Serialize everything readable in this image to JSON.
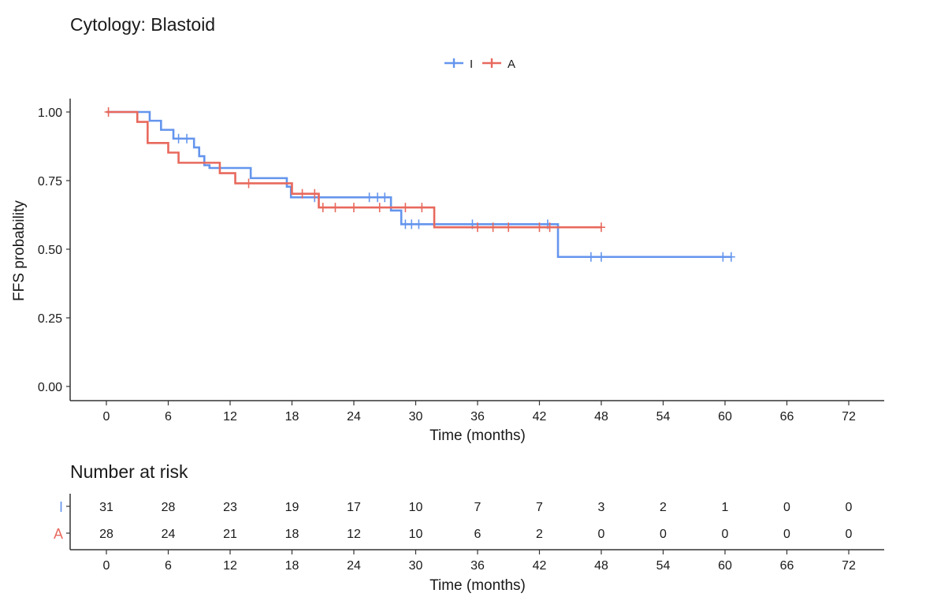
{
  "chart_data": [
    {
      "type": "line",
      "subtype": "kaplan-meier",
      "title": "Cytology: Blastoid",
      "xlabel": "Time (months)",
      "ylabel": "FFS probability",
      "xlim": [
        0,
        72
      ],
      "ylim": [
        0,
        1
      ],
      "x_ticks": [
        0,
        6,
        12,
        18,
        24,
        30,
        36,
        42,
        48,
        54,
        60,
        66,
        72
      ],
      "y_ticks": [
        0,
        0.25,
        0.5,
        0.75,
        1.0
      ],
      "y_tick_labels": [
        "0.00",
        "0.25",
        "0.50",
        "0.75",
        "1.00"
      ],
      "legend_position": "top-center",
      "series": [
        {
          "name": "I",
          "color": "#6495ED",
          "steps": [
            [
              0,
              1.0
            ],
            [
              4.2,
              0.968
            ],
            [
              5.3,
              0.935
            ],
            [
              6.5,
              0.903
            ],
            [
              8.5,
              0.871
            ],
            [
              9.0,
              0.839
            ],
            [
              9.5,
              0.806
            ],
            [
              10.0,
              0.796
            ],
            [
              14.0,
              0.759
            ],
            [
              17.5,
              0.728
            ],
            [
              17.9,
              0.689
            ],
            [
              27.6,
              0.641
            ],
            [
              28.6,
              0.591
            ],
            [
              43.8,
              0.472
            ],
            [
              60.6,
              0.472
            ]
          ],
          "censored": [
            [
              7.0,
              0.903
            ],
            [
              7.8,
              0.903
            ],
            [
              20.2,
              0.689
            ],
            [
              25.5,
              0.689
            ],
            [
              26.3,
              0.689
            ],
            [
              27.0,
              0.689
            ],
            [
              29.0,
              0.591
            ],
            [
              29.6,
              0.591
            ],
            [
              30.3,
              0.591
            ],
            [
              35.5,
              0.591
            ],
            [
              42.8,
              0.591
            ],
            [
              47.0,
              0.472
            ],
            [
              48.0,
              0.472
            ],
            [
              59.8,
              0.472
            ],
            [
              60.6,
              0.472
            ]
          ]
        },
        {
          "name": "A",
          "color": "#E8695D",
          "steps": [
            [
              0,
              1.0
            ],
            [
              3.0,
              0.964
            ],
            [
              4.0,
              0.887
            ],
            [
              6.0,
              0.852
            ],
            [
              7.0,
              0.815
            ],
            [
              11.0,
              0.777
            ],
            [
              12.5,
              0.74
            ],
            [
              17.2,
              0.74
            ],
            [
              18.0,
              0.702
            ],
            [
              20.6,
              0.652
            ],
            [
              31.8,
              0.58
            ],
            [
              48.0,
              0.58
            ]
          ],
          "censored": [
            [
              0.2,
              1.0
            ],
            [
              13.8,
              0.74
            ],
            [
              19.0,
              0.702
            ],
            [
              20.2,
              0.702
            ],
            [
              21.0,
              0.652
            ],
            [
              22.2,
              0.652
            ],
            [
              24.0,
              0.652
            ],
            [
              26.5,
              0.652
            ],
            [
              29.0,
              0.652
            ],
            [
              30.6,
              0.652
            ],
            [
              36.0,
              0.58
            ],
            [
              37.5,
              0.58
            ],
            [
              39.0,
              0.58
            ],
            [
              42.0,
              0.58
            ],
            [
              43.0,
              0.58
            ],
            [
              48.0,
              0.58
            ]
          ]
        }
      ]
    },
    {
      "type": "table",
      "title": "Number at risk",
      "xlabel": "Time (months)",
      "x_ticks": [
        0,
        6,
        12,
        18,
        24,
        30,
        36,
        42,
        48,
        54,
        60,
        66,
        72
      ],
      "rows": [
        {
          "name": "I",
          "color": "#6495ED",
          "values": [
            31,
            28,
            23,
            19,
            17,
            10,
            7,
            7,
            3,
            2,
            1,
            0,
            0
          ]
        },
        {
          "name": "A",
          "color": "#E8695D",
          "values": [
            28,
            24,
            21,
            18,
            12,
            10,
            6,
            2,
            0,
            0,
            0,
            0,
            0
          ]
        }
      ]
    }
  ]
}
